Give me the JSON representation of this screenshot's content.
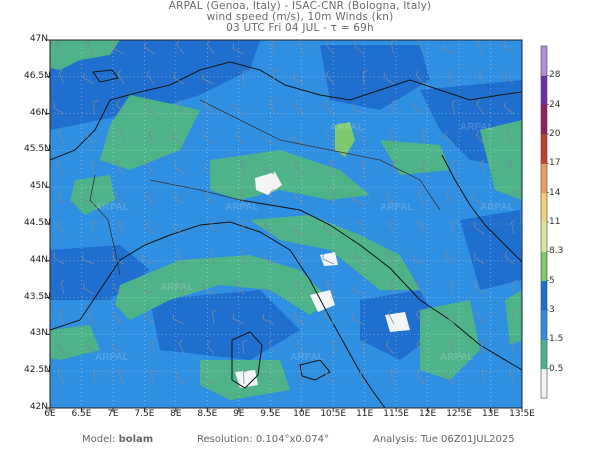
{
  "header": {
    "line1": "ARPAL (Genoa, Italy)  -  ISAC-CNR (Bologna, Italy)",
    "line2": "wind speed (m/s), 10m Winds (kn)",
    "line3": "03 UTC Fri 04 JUL  -  τ = 69h"
  },
  "axes": {
    "lat_labels": [
      "47N",
      "46.5N",
      "46N",
      "45.5N",
      "45N",
      "44.5N",
      "44N",
      "43.5N",
      "43N",
      "42.5N",
      "42N"
    ],
    "lon_labels": [
      "6E",
      "6.5E",
      "7E",
      "7.5E",
      "8E",
      "8.5E",
      "9E",
      "9.5E",
      "10E",
      "10.5E",
      "11E",
      "11.5E",
      "12E",
      "12.5E",
      "13E",
      "13.5E"
    ]
  },
  "colorbar": {
    "levels": [
      "0.5",
      "1.5",
      "3",
      "5",
      "8.3",
      "11",
      "14",
      "17",
      "20",
      "24",
      "28"
    ],
    "colors": [
      "#f2f4f5",
      "#4fb38a",
      "#2f8fe0",
      "#1f6fcf",
      "#7ec86e",
      "#d8e6a0",
      "#f0d080",
      "#e8a060",
      "#c04030",
      "#902060",
      "#7030a0",
      "#b090d0"
    ]
  },
  "map": {
    "watermark": "ARPAL"
  },
  "footer": {
    "model_label": "Model:",
    "model_value": "bolam",
    "resolution_label": "Resolution:",
    "resolution_value": "0.104°x0.074°",
    "analysis_label": "Analysis:",
    "analysis_value": "Tue 06Z01JUL2025"
  }
}
